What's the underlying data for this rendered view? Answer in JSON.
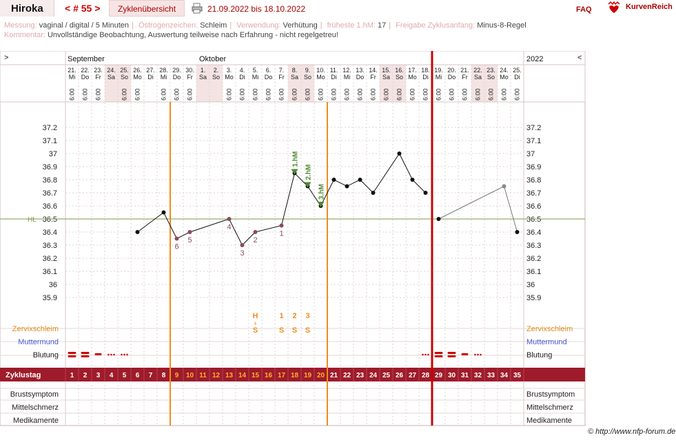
{
  "header": {
    "name": "Hiroka",
    "cycle_nav": "< # 55 >",
    "overview_tab": "Zyklenübersicht",
    "date_range": "21.09.2022 bis 18.10.2022",
    "faq": "FAQ",
    "brand": "KurvenReich"
  },
  "meta": {
    "row1": [
      {
        "label": "Messung:",
        "value": "vaginal / digital / 5 Minuten"
      },
      {
        "label": "Östrogenzeichen:",
        "value": "Schleim"
      },
      {
        "label": "Verwendung:",
        "value": "Verhütung"
      },
      {
        "label": "früheste 1.hM:",
        "value": "17"
      },
      {
        "label": "Freigabe Zyklusanfang:",
        "value": "Minus-8-Regel"
      }
    ],
    "row2": {
      "label": "Kommentar:",
      "value": "Unvollständige Beobachtung, Auswertung teilweise nach Erfahrung - nicht regelgetreu!"
    }
  },
  "months": {
    "sep": "September",
    "oct": "Oktober",
    "year": "2022"
  },
  "nav": {
    "left": ">",
    "right": "<"
  },
  "days": [
    {
      "d": "21.",
      "w": "Mi",
      "we": false
    },
    {
      "d": "22.",
      "w": "Do",
      "we": false
    },
    {
      "d": "23.",
      "w": "Fr",
      "we": false
    },
    {
      "d": "24.",
      "w": "Sa",
      "we": true
    },
    {
      "d": "25.",
      "w": "So",
      "we": true
    },
    {
      "d": "26.",
      "w": "Mo",
      "we": false
    },
    {
      "d": "27.",
      "w": "Di",
      "we": false
    },
    {
      "d": "28.",
      "w": "Mi",
      "we": false
    },
    {
      "d": "29.",
      "w": "Do",
      "we": false
    },
    {
      "d": "30.",
      "w": "Fr",
      "we": false
    },
    {
      "d": "1.",
      "w": "Sa",
      "we": true
    },
    {
      "d": "2.",
      "w": "So",
      "we": true
    },
    {
      "d": "3.",
      "w": "Mo",
      "we": false
    },
    {
      "d": "4.",
      "w": "Di",
      "we": false
    },
    {
      "d": "5.",
      "w": "Mi",
      "we": false
    },
    {
      "d": "6.",
      "w": "Do",
      "we": false
    },
    {
      "d": "7.",
      "w": "Fr",
      "we": false
    },
    {
      "d": "8.",
      "w": "Sa",
      "we": true
    },
    {
      "d": "9.",
      "w": "So",
      "we": true
    },
    {
      "d": "10.",
      "w": "Mo",
      "we": false
    },
    {
      "d": "11.",
      "w": "Di",
      "we": false
    },
    {
      "d": "12.",
      "w": "Mi",
      "we": false
    },
    {
      "d": "13.",
      "w": "Do",
      "we": false
    },
    {
      "d": "14.",
      "w": "Fr",
      "we": false
    },
    {
      "d": "15.",
      "w": "Sa",
      "we": true
    },
    {
      "d": "16.",
      "w": "So",
      "we": true
    },
    {
      "d": "17.",
      "w": "Mo",
      "we": false
    },
    {
      "d": "18.",
      "w": "Di",
      "we": false
    },
    {
      "d": "19.",
      "w": "Mi",
      "we": false
    },
    {
      "d": "20.",
      "w": "Do",
      "we": false
    },
    {
      "d": "21.",
      "w": "Fr",
      "we": false
    },
    {
      "d": "22.",
      "w": "Sa",
      "we": true
    },
    {
      "d": "23.",
      "w": "So",
      "we": true
    },
    {
      "d": "24.",
      "w": "Mo",
      "we": false
    },
    {
      "d": "25.",
      "w": "Di",
      "we": false
    }
  ],
  "times": [
    "6:00",
    "6:00",
    "6:00",
    "",
    "6:00",
    "6:00",
    "",
    "6:00",
    "6:00",
    "6:00",
    "",
    "",
    "6:00",
    "6:00",
    "6:00",
    "6:00",
    "6:00",
    "6:00",
    "6:00",
    "6:00",
    "6:00",
    "6:00",
    "6:00",
    "6:00",
    "6:00",
    "6:00",
    "6:00",
    "6:00",
    "6:00",
    "6:00",
    "6:00",
    "6:00",
    "6:00",
    "6:00",
    "6:00"
  ],
  "chart_data": {
    "type": "line",
    "x_cycle_days": [
      6,
      8,
      9,
      10,
      13,
      14,
      15,
      17,
      18,
      19,
      20,
      21,
      22,
      23,
      24,
      26,
      27,
      28,
      29,
      34,
      35
    ],
    "temperatures": [
      36.4,
      36.55,
      36.35,
      36.4,
      36.5,
      36.3,
      36.4,
      36.45,
      36.85,
      36.75,
      36.6,
      36.8,
      36.75,
      36.8,
      36.7,
      37.0,
      36.8,
      36.7,
      36.5,
      36.75,
      36.4
    ],
    "y_ticks": [
      "37.2",
      "37.1",
      "37",
      "36.9",
      "36.8",
      "36.7",
      "36.6",
      "36.5",
      "36.4",
      "36.3",
      "36.2",
      "36.1",
      "36",
      "35.9"
    ],
    "ylim": [
      35.85,
      37.25
    ],
    "hl_label": "HL",
    "hl_value": 36.5,
    "low_labels": [
      {
        "day": 9,
        "temp": 36.35,
        "text": "6"
      },
      {
        "day": 10,
        "temp": 36.4,
        "text": "5"
      },
      {
        "day": 13,
        "temp": 36.5,
        "text": "4"
      },
      {
        "day": 14,
        "temp": 36.3,
        "text": "3"
      },
      {
        "day": 15,
        "temp": 36.4,
        "text": "2"
      },
      {
        "day": 17,
        "temp": 36.45,
        "text": "1"
      }
    ],
    "high_labels": [
      {
        "day": 18,
        "temp": 36.85,
        "text": "1.hM"
      },
      {
        "day": 19,
        "temp": 36.75,
        "text": "2.hM"
      },
      {
        "day": 20,
        "temp": 36.6,
        "text": "3.hM"
      }
    ],
    "orange_lines_after_day": [
      8,
      20
    ],
    "red_line_after_day": 28,
    "cycle_days": [
      1,
      2,
      3,
      4,
      5,
      6,
      7,
      8,
      9,
      10,
      11,
      12,
      13,
      14,
      15,
      16,
      17,
      18,
      19,
      20,
      21,
      22,
      23,
      24,
      25,
      26,
      27,
      28,
      29,
      30,
      31,
      32,
      33,
      34,
      35
    ],
    "orange_cycle_days_from": 9,
    "orange_cycle_days_to": 20
  },
  "observations": {
    "mucus_top": [
      {
        "day": 15,
        "text": "H"
      },
      {
        "day": 17,
        "text": "1"
      },
      {
        "day": 18,
        "text": "2"
      },
      {
        "day": 19,
        "text": "3"
      }
    ],
    "mucus_bottom": [
      {
        "day": 15,
        "text": "S"
      },
      {
        "day": 17,
        "text": "S"
      },
      {
        "day": 18,
        "text": "S"
      },
      {
        "day": 19,
        "text": "S"
      }
    ],
    "bleeding": [
      {
        "day": 1,
        "kind": "heavy"
      },
      {
        "day": 2,
        "kind": "heavy"
      },
      {
        "day": 3,
        "kind": "medium"
      },
      {
        "day": 4,
        "kind": "spot"
      },
      {
        "day": 5,
        "kind": "spot"
      },
      {
        "day": 28,
        "kind": "spot"
      },
      {
        "day": 29,
        "kind": "heavy"
      },
      {
        "day": 30,
        "kind": "heavy"
      },
      {
        "day": 31,
        "kind": "medium"
      },
      {
        "day": 32,
        "kind": "spot"
      }
    ]
  },
  "row_labels": {
    "cervical_mucus": "Zervixschleim",
    "cervix": "Muttermund",
    "bleeding": "Blutung",
    "cycle_day": "Zyklustag",
    "breast": "Brustsymptom",
    "mittelschmerz": "Mittelschmerz",
    "medication": "Medikamente"
  },
  "colors": {
    "brand": "#a00000",
    "orange": "#f08c1e",
    "red": "#cc0000",
    "green": "#4f8a2e",
    "hl": "#7a9a4a"
  },
  "footer": {
    "credit": "© http://www.nfp-forum.de"
  }
}
